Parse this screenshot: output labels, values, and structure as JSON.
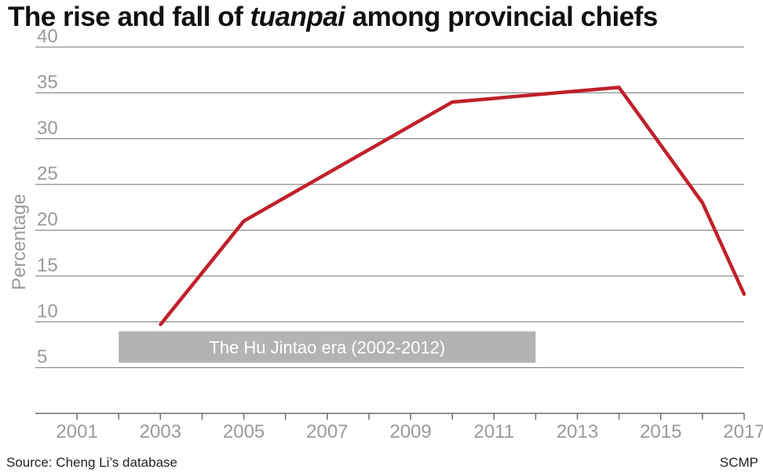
{
  "header": {
    "title_pre": "The rise and fall of ",
    "title_em": "tuanpai",
    "title_post": " among provincial chiefs"
  },
  "footer": {
    "source": "Source: Cheng Li’s database",
    "credit": "SCMP"
  },
  "chart_data": {
    "type": "line",
    "title": "The rise and fall of tuanpai among provincial chiefs",
    "xlabel": "",
    "ylabel": "Percentage",
    "xlim": [
      2000,
      2017
    ],
    "ylim": [
      0,
      40
    ],
    "x_ticks": [
      2001,
      2003,
      2005,
      2007,
      2009,
      2011,
      2013,
      2015,
      2017
    ],
    "y_ticks": [
      5,
      10,
      15,
      20,
      25,
      30,
      35,
      40
    ],
    "grid": true,
    "series": [
      {
        "name": "",
        "color": "#c0202a",
        "points": [
          {
            "x": 2003,
            "y": 9.7
          },
          {
            "x": 2005,
            "y": 21.0
          },
          {
            "x": 2010,
            "y": 34.0
          },
          {
            "x": 2014,
            "y": 35.6
          },
          {
            "x": 2016,
            "y": 23.0
          },
          {
            "x": 2017,
            "y": 13.0
          }
        ]
      }
    ],
    "annotations": [
      {
        "text": "The Hu Jintao era (2002-2012)",
        "x_start": 2002,
        "x_end": 2012,
        "y": 7.5,
        "color": "#b3b3b3"
      }
    ]
  }
}
